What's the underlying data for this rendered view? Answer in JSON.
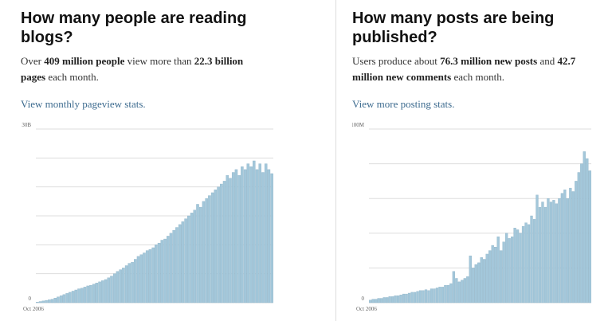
{
  "chart_data": [
    {
      "type": "bar",
      "title": "How many people are reading blogs?",
      "subtitle": [
        {
          "text": "Over ",
          "bold": false
        },
        {
          "text": "409 million people",
          "bold": true
        },
        {
          "text": " view more than ",
          "bold": false
        },
        {
          "text": "22.3 billion pages",
          "bold": true
        },
        {
          "text": " each month.",
          "bold": false
        }
      ],
      "link": "View monthly pageview stats.",
      "categories": [
        "Oct 2006",
        null,
        null,
        null,
        null,
        null,
        null,
        null,
        null,
        null,
        null,
        null,
        null,
        null,
        null,
        null,
        null,
        null,
        null,
        null,
        null,
        null,
        null,
        null,
        null,
        null,
        null,
        null,
        null,
        null,
        null,
        null,
        null,
        null,
        null,
        null,
        null,
        null,
        null,
        null,
        null,
        null,
        null,
        null,
        null,
        null,
        null,
        null,
        null,
        null,
        null,
        null,
        null,
        null,
        null,
        null,
        null,
        null,
        null,
        null,
        null,
        null,
        null,
        null,
        null,
        null,
        null,
        null,
        null,
        null,
        null,
        null,
        null,
        null,
        null,
        null,
        null,
        null,
        null,
        null
      ],
      "values": [
        0.1,
        0.2,
        0.3,
        0.4,
        0.5,
        0.6,
        0.8,
        1.0,
        1.2,
        1.4,
        1.6,
        1.8,
        2.0,
        2.2,
        2.4,
        2.5,
        2.7,
        2.9,
        3.0,
        3.2,
        3.4,
        3.6,
        3.8,
        4.0,
        4.3,
        4.6,
        5.0,
        5.4,
        5.7,
        6.0,
        6.4,
        6.8,
        7.0,
        7.5,
        8.0,
        8.3,
        8.6,
        9.0,
        9.2,
        9.5,
        10,
        10.3,
        10.8,
        11,
        11.5,
        12,
        12.5,
        13,
        13.5,
        14,
        14.5,
        15,
        15.5,
        16,
        17,
        16.5,
        17.5,
        18,
        18.5,
        19,
        19.5,
        20,
        20.5,
        21,
        22,
        21.5,
        22.5,
        23,
        22,
        23.5,
        23,
        24,
        23.5,
        24.5,
        23,
        24,
        22.5,
        24,
        23,
        22.3
      ],
      "color": "#a3c7da",
      "ylim": [
        0,
        30
      ],
      "yticks": [
        0,
        {
          "value": 30,
          "label": "30B"
        }
      ],
      "grid_lines": [
        5,
        10,
        15,
        20,
        25
      ]
    },
    {
      "type": "bar",
      "title": "How many posts are being published?",
      "subtitle": [
        {
          "text": "Users produce about ",
          "bold": false
        },
        {
          "text": "76.3 million new posts",
          "bold": true
        },
        {
          "text": " and ",
          "bold": false
        },
        {
          "text": "42.7 million new comments",
          "bold": true
        },
        {
          "text": " each month.",
          "bold": false
        }
      ],
      "link": "View more posting stats.",
      "categories": [
        "Oct 2006",
        null,
        null,
        null,
        null,
        null,
        null,
        null,
        null,
        null,
        null,
        null,
        null,
        null,
        null,
        null,
        null,
        null,
        null,
        null,
        null,
        null,
        null,
        null,
        null,
        null,
        null,
        null,
        null,
        null,
        null,
        null,
        null,
        null,
        null,
        null,
        null,
        null,
        null,
        null,
        null,
        null,
        null,
        null,
        null,
        null,
        null,
        null,
        null,
        null,
        null,
        null,
        null,
        null,
        null,
        null,
        null,
        null,
        null,
        null,
        null,
        null,
        null,
        null,
        null,
        null,
        null,
        null,
        null,
        null,
        null,
        null,
        null,
        null,
        null,
        null,
        null,
        null,
        null,
        null
      ],
      "values": [
        1.5,
        2,
        2,
        2.5,
        2.5,
        3,
        3,
        3.5,
        3.5,
        4,
        4,
        4.5,
        5,
        5,
        5.5,
        6,
        6,
        6.5,
        7,
        7,
        7.5,
        7,
        8,
        8,
        8.5,
        9,
        9,
        10,
        10,
        11,
        18,
        14,
        12,
        13,
        14,
        15,
        27,
        20,
        22,
        23,
        26,
        25,
        28,
        30,
        33,
        32,
        38,
        30,
        35,
        40,
        37,
        38,
        43,
        42,
        40,
        44,
        46,
        45,
        50,
        48,
        62,
        55,
        58,
        55,
        60,
        58,
        59,
        57,
        60,
        63,
        65,
        60,
        66,
        64,
        70,
        75,
        80,
        87,
        83,
        76
      ],
      "color": "#a3c7da",
      "ylim": [
        0,
        100
      ],
      "yticks": [
        0,
        {
          "value": 100,
          "label": "100M"
        }
      ],
      "grid_lines": [
        20,
        40,
        60,
        80
      ]
    }
  ]
}
